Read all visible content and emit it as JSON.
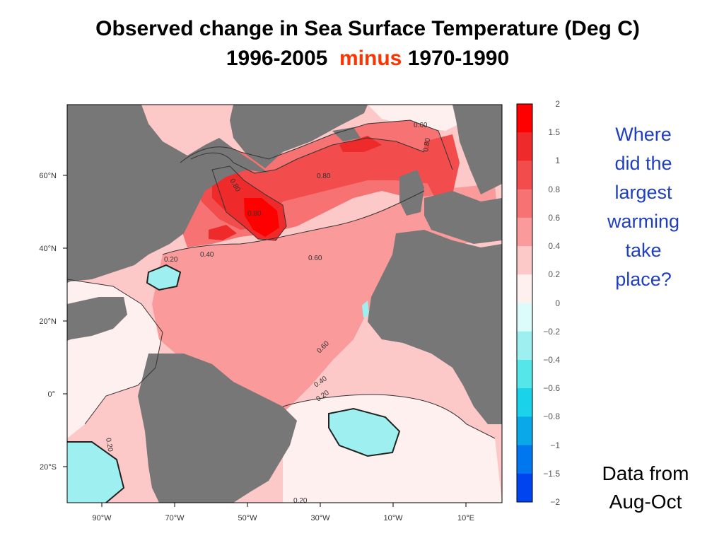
{
  "title": {
    "line1": "Observed change in Sea Surface Temperature  (Deg C)",
    "line2_a": "1996-2005",
    "line2_minus": "minus",
    "line2_b": "1970-1990"
  },
  "map": {
    "lat_labels": [
      "60°N",
      "40°N",
      "20°N",
      "0°",
      "20°S"
    ],
    "lon_labels": [
      "90°W",
      "70°W",
      "50°W",
      "30°W",
      "10°W",
      "10°E"
    ],
    "contour_labels": [
      "0.60",
      "0.80",
      "0.80",
      "0.80",
      "0.80",
      "0.40",
      "0.20",
      "0.60",
      "0.60",
      "0.40",
      "0.20",
      "0.20",
      "0.20"
    ],
    "colors": {
      "land": "#777777",
      "grid": "#cccccc"
    }
  },
  "colorbar": {
    "labels": [
      "2",
      "1.5",
      "1",
      "0.8",
      "0.6",
      "0.4",
      "0.2",
      "0",
      "−0.2",
      "−0.4",
      "−0.6",
      "−0.8",
      "−1",
      "−1.5",
      "−2"
    ],
    "colors": [
      "#ff0000",
      "#ee2a2a",
      "#f24c4c",
      "#f77272",
      "#fa9a9a",
      "#fcc8c8",
      "#fff0f0",
      "#dcfbfb",
      "#9ef0f0",
      "#55e6ea",
      "#1ad2ea",
      "#0aa8e8",
      "#0077ee",
      "#0044f0"
    ]
  },
  "question": [
    "Where",
    "did the",
    "largest",
    "warming",
    "take",
    "place?"
  ],
  "source": [
    "Data from",
    "Aug-Oct"
  ]
}
